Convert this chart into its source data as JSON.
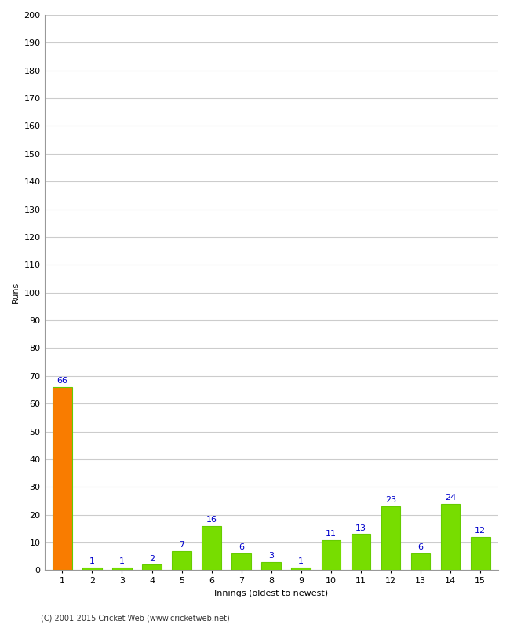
{
  "categories": [
    "1",
    "2",
    "3",
    "4",
    "5",
    "6",
    "7",
    "8",
    "9",
    "10",
    "11",
    "12",
    "13",
    "14",
    "15"
  ],
  "values": [
    66,
    1,
    1,
    2,
    7,
    16,
    6,
    3,
    1,
    11,
    13,
    23,
    6,
    24,
    12
  ],
  "bar_colors": [
    "#f97c00",
    "#77dd00",
    "#77dd00",
    "#77dd00",
    "#77dd00",
    "#77dd00",
    "#77dd00",
    "#77dd00",
    "#77dd00",
    "#77dd00",
    "#77dd00",
    "#77dd00",
    "#77dd00",
    "#77dd00",
    "#77dd00"
  ],
  "bar_edge_color": "#66cc00",
  "ylabel": "Runs",
  "xlabel": "Innings (oldest to newest)",
  "ylim": [
    0,
    200
  ],
  "yticks": [
    0,
    10,
    20,
    30,
    40,
    50,
    60,
    70,
    80,
    90,
    100,
    110,
    120,
    130,
    140,
    150,
    160,
    170,
    180,
    190,
    200
  ],
  "label_color": "#0000cc",
  "footer": "(C) 2001-2015 Cricket Web (www.cricketweb.net)",
  "background_color": "#ffffff",
  "plot_background": "#ffffff",
  "grid_color": "#cccccc",
  "axis_label_fontsize": 8,
  "tick_fontsize": 8,
  "bar_label_fontsize": 8,
  "footer_fontsize": 7,
  "bar_width": 0.65
}
